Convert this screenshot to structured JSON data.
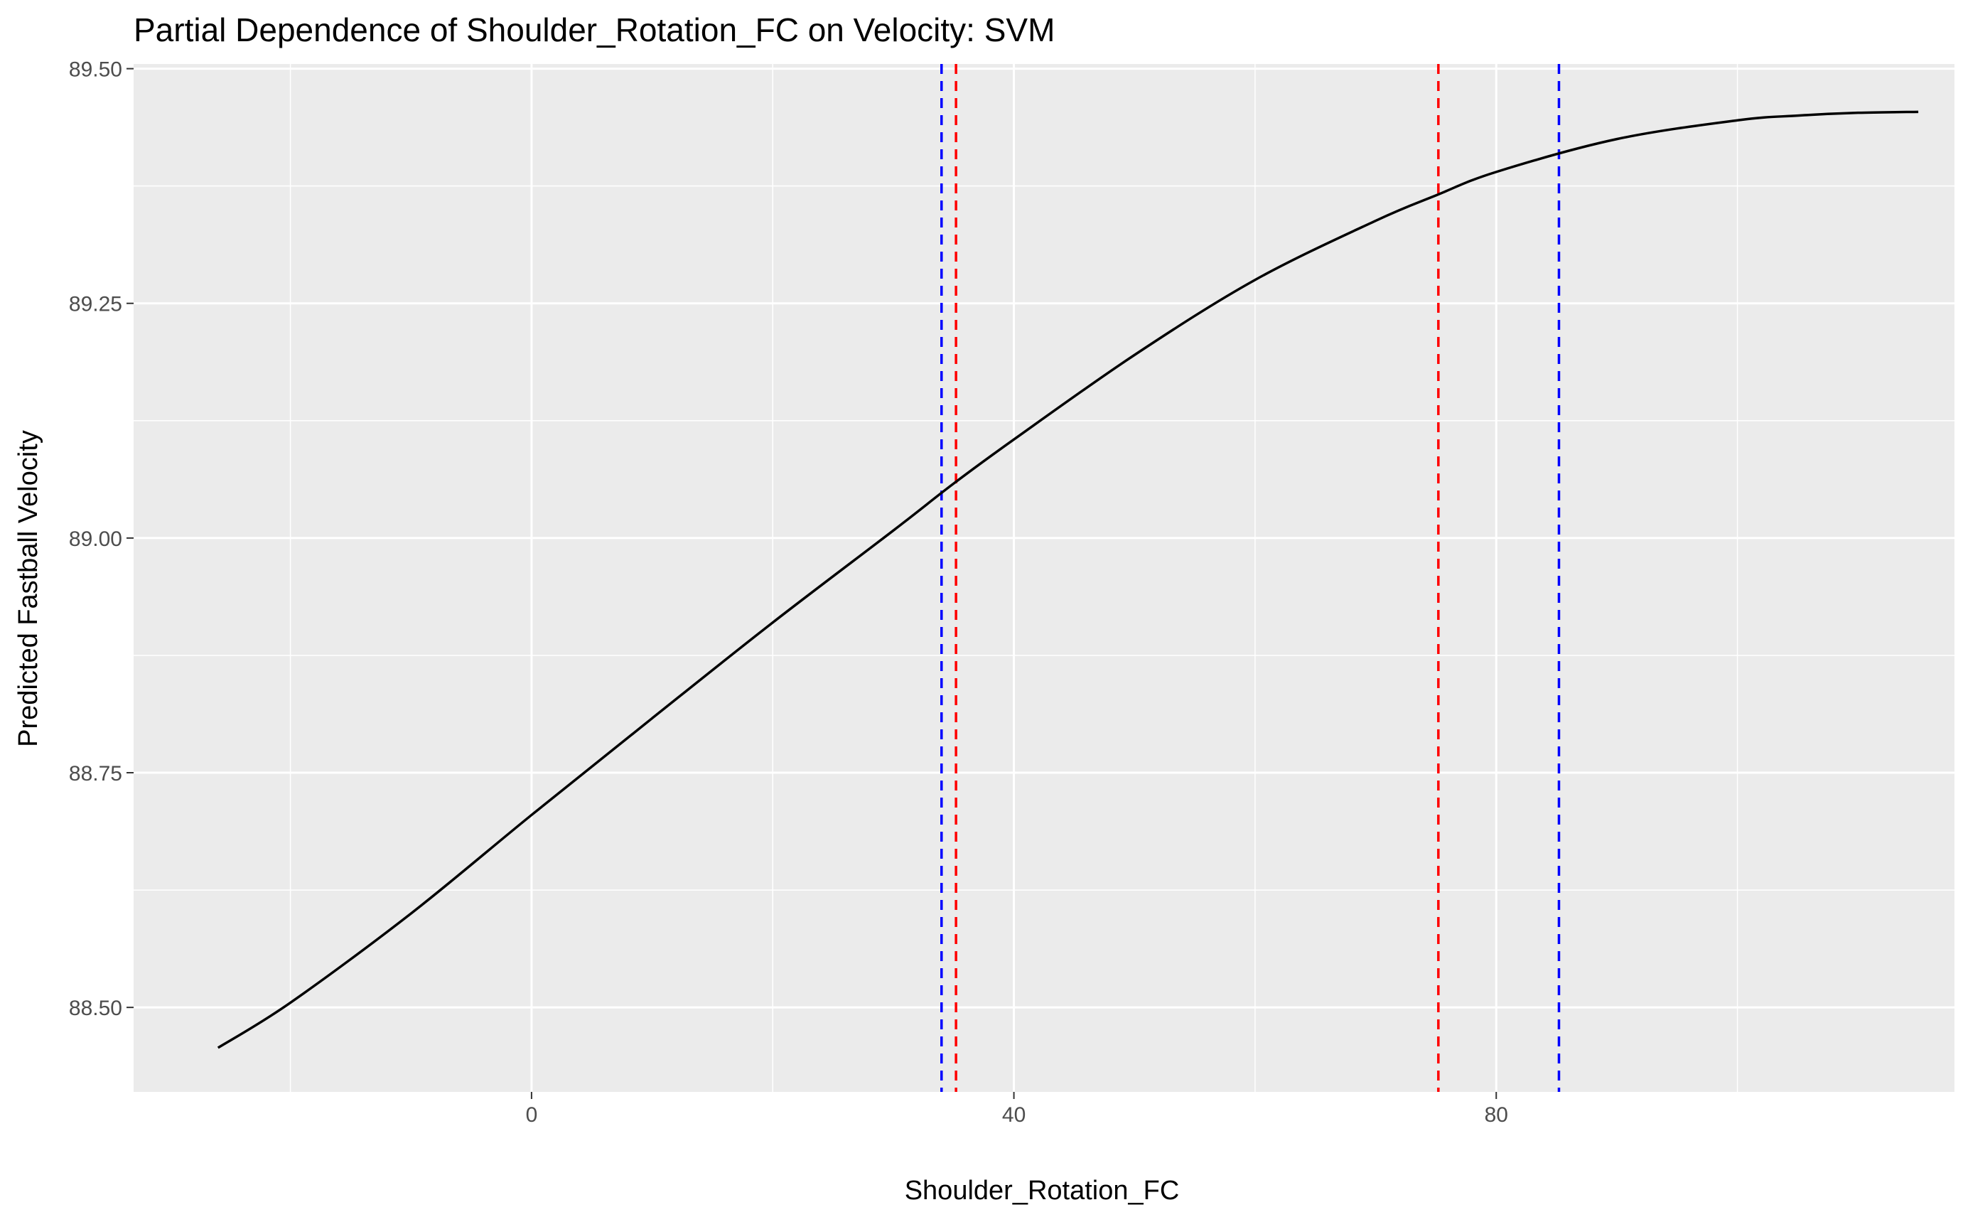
{
  "chart_data": {
    "type": "line",
    "title": "Partial Dependence of Shoulder_Rotation_FC on Velocity: SVM",
    "xlabel": "Shoulder_Rotation_FC",
    "ylabel": "Predicted Fastball Velocity",
    "xlim": [
      -33,
      118
    ],
    "ylim": [
      88.41,
      89.505
    ],
    "x_ticks": [
      {
        "value": 0,
        "label": "0"
      },
      {
        "value": 40,
        "label": "40"
      },
      {
        "value": 80,
        "label": "80"
      }
    ],
    "y_ticks": [
      {
        "value": 88.5,
        "label": "88.50"
      },
      {
        "value": 88.75,
        "label": "88.75"
      },
      {
        "value": 89.0,
        "label": "89.00"
      },
      {
        "value": 89.25,
        "label": "89.25"
      },
      {
        "value": 89.5,
        "label": "89.50"
      }
    ],
    "x_minor_ticks": [
      -20,
      20,
      60,
      100
    ],
    "y_minor_ticks": [
      88.625,
      88.875,
      89.125,
      89.375
    ],
    "grid": true,
    "background": "#ebebeb",
    "series": [
      {
        "color": "#000000",
        "x": [
          -26,
          -20,
          -10,
          0,
          10,
          20,
          30,
          35,
          40,
          50,
          60,
          70,
          75,
          80,
          90,
          100,
          105,
          110,
          115
        ],
        "y": [
          88.457,
          88.505,
          88.6,
          88.705,
          88.808,
          88.91,
          89.008,
          89.058,
          89.105,
          89.195,
          89.275,
          89.338,
          89.365,
          89.39,
          89.425,
          89.445,
          89.45,
          89.453,
          89.454
        ]
      }
    ],
    "reference_lines": [
      {
        "x": 34,
        "color": "#0000ff",
        "style": "dashed"
      },
      {
        "x": 35.2,
        "color": "#ff0000",
        "style": "dashed"
      },
      {
        "x": 75.2,
        "color": "#ff0000",
        "style": "dashed"
      },
      {
        "x": 85.2,
        "color": "#0000ff",
        "style": "dashed"
      }
    ]
  }
}
